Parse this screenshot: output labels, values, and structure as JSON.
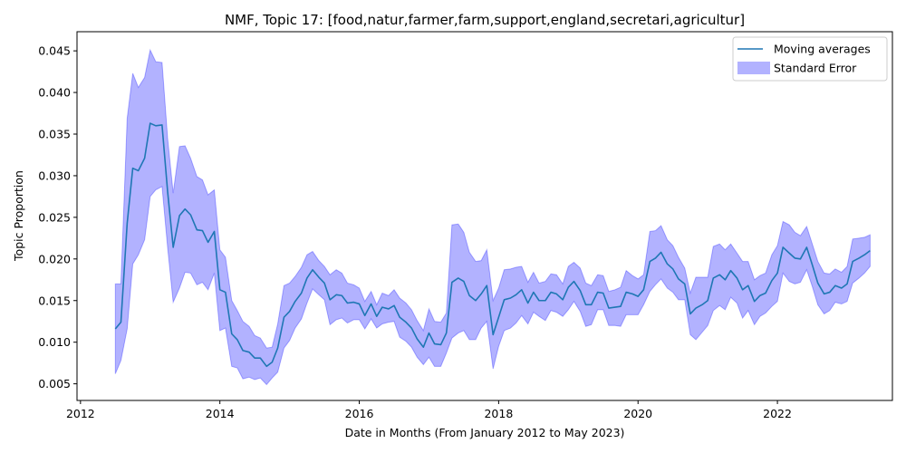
{
  "chart_data": {
    "type": "line",
    "title": "NMF, Topic 17: [food,natur,farmer,farm,support,england,secretari,agricultur]",
    "xlabel": "Date in Months (From January 2012 to May 2023)",
    "ylabel": "Topic Proportion",
    "xlim": [
      2011.95,
      2023.65
    ],
    "ylim": [
      0.003,
      0.0473
    ],
    "xticks": [
      2012,
      2014,
      2016,
      2018,
      2020,
      2022
    ],
    "yticks": [
      0.005,
      0.01,
      0.015,
      0.02,
      0.025,
      0.03,
      0.035,
      0.04,
      0.045
    ],
    "ytick_labels": [
      "0.005",
      "0.010",
      "0.015",
      "0.020",
      "0.025",
      "0.030",
      "0.035",
      "0.040",
      "0.045"
    ],
    "grid": false,
    "legend_position": "upper right",
    "colors": {
      "line": "#1f77b4",
      "band": "#0000ff",
      "band_alpha": 0.3
    },
    "series": [
      {
        "name": "Moving averages",
        "kind": "line",
        "x": [
          2012.5,
          2012.58,
          2012.67,
          2012.75,
          2012.83,
          2012.92,
          2013.0,
          2013.08,
          2013.17,
          2013.25,
          2013.33,
          2013.42,
          2013.5,
          2013.58,
          2013.67,
          2013.75,
          2013.83,
          2013.92,
          2014.0,
          2014.08,
          2014.17,
          2014.25,
          2014.33,
          2014.42,
          2014.5,
          2014.58,
          2014.67,
          2014.75,
          2014.83,
          2014.92,
          2015.0,
          2015.08,
          2015.17,
          2015.25,
          2015.33,
          2015.42,
          2015.5,
          2015.58,
          2015.67,
          2015.75,
          2015.83,
          2015.92,
          2016.0,
          2016.08,
          2016.17,
          2016.25,
          2016.33,
          2016.42,
          2016.5,
          2016.58,
          2016.67,
          2016.75,
          2016.83,
          2016.92,
          2017.0,
          2017.08,
          2017.17,
          2017.25,
          2017.33,
          2017.42,
          2017.5,
          2017.58,
          2017.67,
          2017.75,
          2017.83,
          2017.92,
          2018.0,
          2018.08,
          2018.17,
          2018.25,
          2018.33,
          2018.42,
          2018.5,
          2018.58,
          2018.67,
          2018.75,
          2018.83,
          2018.92,
          2019.0,
          2019.08,
          2019.17,
          2019.25,
          2019.33,
          2019.42,
          2019.5,
          2019.58,
          2019.67,
          2019.75,
          2019.83,
          2019.92,
          2020.0,
          2020.08,
          2020.17,
          2020.25,
          2020.33,
          2020.42,
          2020.5,
          2020.58,
          2020.67,
          2020.75,
          2020.83,
          2020.92,
          2021.0,
          2021.08,
          2021.17,
          2021.25,
          2021.33,
          2021.42,
          2021.5,
          2021.58,
          2021.67,
          2021.75,
          2021.83,
          2021.92,
          2022.0,
          2022.08,
          2022.17,
          2022.25,
          2022.33,
          2022.42,
          2022.5,
          2022.58,
          2022.67,
          2022.75,
          2022.83,
          2022.92,
          2023.0,
          2023.08,
          2023.17,
          2023.25,
          2023.33
        ],
        "y": [
          0.0116,
          0.0124,
          0.0243,
          0.0309,
          0.0306,
          0.0321,
          0.0363,
          0.036,
          0.0361,
          0.0281,
          0.0214,
          0.0252,
          0.026,
          0.0253,
          0.0235,
          0.0234,
          0.022,
          0.0233,
          0.0163,
          0.016,
          0.011,
          0.0103,
          0.009,
          0.0088,
          0.0081,
          0.0081,
          0.0071,
          0.0076,
          0.0093,
          0.013,
          0.0137,
          0.0149,
          0.0159,
          0.0177,
          0.0187,
          0.0178,
          0.0171,
          0.0151,
          0.0157,
          0.0156,
          0.0147,
          0.0148,
          0.0146,
          0.0132,
          0.0146,
          0.0131,
          0.0142,
          0.014,
          0.0144,
          0.013,
          0.0124,
          0.0117,
          0.0104,
          0.0094,
          0.0111,
          0.0098,
          0.0097,
          0.0111,
          0.0172,
          0.0177,
          0.0173,
          0.0156,
          0.015,
          0.0158,
          0.0168,
          0.0109,
          0.013,
          0.0151,
          0.0153,
          0.0157,
          0.0163,
          0.0147,
          0.016,
          0.015,
          0.015,
          0.016,
          0.0158,
          0.0151,
          0.0166,
          0.0173,
          0.0162,
          0.0145,
          0.0145,
          0.016,
          0.0159,
          0.0141,
          0.0142,
          0.0143,
          0.016,
          0.0158,
          0.0155,
          0.0163,
          0.0197,
          0.0201,
          0.0208,
          0.0194,
          0.0188,
          0.0176,
          0.017,
          0.0134,
          0.0141,
          0.0145,
          0.015,
          0.0177,
          0.0181,
          0.0175,
          0.0186,
          0.0177,
          0.0163,
          0.0168,
          0.0149,
          0.0156,
          0.0159,
          0.0174,
          0.0183,
          0.0214,
          0.0207,
          0.0201,
          0.02,
          0.0214,
          0.0193,
          0.0171,
          0.0158,
          0.016,
          0.0168,
          0.0165,
          0.017,
          0.0197,
          0.0201,
          0.0205,
          0.021
        ]
      },
      {
        "name": "Standard Error",
        "kind": "band",
        "x": [
          2012.5,
          2012.58,
          2012.67,
          2012.75,
          2012.83,
          2012.92,
          2013.0,
          2013.08,
          2013.17,
          2013.25,
          2013.33,
          2013.42,
          2013.5,
          2013.58,
          2013.67,
          2013.75,
          2013.83,
          2013.92,
          2014.0,
          2014.08,
          2014.17,
          2014.25,
          2014.33,
          2014.42,
          2014.5,
          2014.58,
          2014.67,
          2014.75,
          2014.83,
          2014.92,
          2015.0,
          2015.08,
          2015.17,
          2015.25,
          2015.33,
          2015.42,
          2015.5,
          2015.58,
          2015.67,
          2015.75,
          2015.83,
          2015.92,
          2016.0,
          2016.08,
          2016.17,
          2016.25,
          2016.33,
          2016.42,
          2016.5,
          2016.58,
          2016.67,
          2016.75,
          2016.83,
          2016.92,
          2017.0,
          2017.08,
          2017.17,
          2017.25,
          2017.33,
          2017.42,
          2017.5,
          2017.58,
          2017.67,
          2017.75,
          2017.83,
          2017.92,
          2018.0,
          2018.08,
          2018.17,
          2018.25,
          2018.33,
          2018.42,
          2018.5,
          2018.58,
          2018.67,
          2018.75,
          2018.83,
          2018.92,
          2019.0,
          2019.08,
          2019.17,
          2019.25,
          2019.33,
          2019.42,
          2019.5,
          2019.58,
          2019.67,
          2019.75,
          2019.83,
          2019.92,
          2020.0,
          2020.08,
          2020.17,
          2020.25,
          2020.33,
          2020.42,
          2020.5,
          2020.58,
          2020.67,
          2020.75,
          2020.83,
          2020.92,
          2021.0,
          2021.08,
          2021.17,
          2021.25,
          2021.33,
          2021.42,
          2021.5,
          2021.58,
          2021.67,
          2021.75,
          2021.83,
          2021.92,
          2022.0,
          2022.08,
          2022.17,
          2022.25,
          2022.33,
          2022.42,
          2022.5,
          2022.58,
          2022.67,
          2022.75,
          2022.83,
          2022.92,
          2023.0,
          2023.08,
          2023.17,
          2023.25,
          2023.33
        ],
        "lower": [
          0.0062,
          0.0078,
          0.0116,
          0.0194,
          0.0205,
          0.0223,
          0.0275,
          0.0283,
          0.0287,
          0.0214,
          0.0148,
          0.0165,
          0.0184,
          0.0183,
          0.0169,
          0.0172,
          0.0163,
          0.0183,
          0.0114,
          0.0117,
          0.0071,
          0.0069,
          0.0056,
          0.0058,
          0.0055,
          0.0057,
          0.0049,
          0.0057,
          0.0064,
          0.0093,
          0.0102,
          0.0117,
          0.0128,
          0.0147,
          0.0164,
          0.0157,
          0.0151,
          0.0121,
          0.0127,
          0.0129,
          0.0123,
          0.0127,
          0.0127,
          0.0116,
          0.0128,
          0.0117,
          0.0122,
          0.0124,
          0.0125,
          0.0106,
          0.0101,
          0.0094,
          0.0082,
          0.0073,
          0.0082,
          0.0071,
          0.0071,
          0.0087,
          0.0105,
          0.0111,
          0.0114,
          0.0103,
          0.0103,
          0.0117,
          0.0125,
          0.0068,
          0.0095,
          0.0114,
          0.0117,
          0.0123,
          0.0132,
          0.0122,
          0.0136,
          0.0131,
          0.0126,
          0.0138,
          0.0136,
          0.0131,
          0.0139,
          0.0149,
          0.0137,
          0.0119,
          0.0121,
          0.0139,
          0.0139,
          0.012,
          0.012,
          0.0119,
          0.0133,
          0.0133,
          0.0133,
          0.0145,
          0.0161,
          0.0169,
          0.0176,
          0.0165,
          0.016,
          0.0151,
          0.0151,
          0.0109,
          0.0103,
          0.0112,
          0.012,
          0.0138,
          0.0144,
          0.0139,
          0.0154,
          0.0147,
          0.0129,
          0.0138,
          0.0121,
          0.0131,
          0.0135,
          0.0143,
          0.0149,
          0.0183,
          0.0173,
          0.017,
          0.0172,
          0.0187,
          0.0167,
          0.0145,
          0.0134,
          0.0138,
          0.0148,
          0.0146,
          0.0149,
          0.0171,
          0.0177,
          0.0183,
          0.0191
        ],
        "upper": [
          0.017,
          0.017,
          0.0369,
          0.0423,
          0.0406,
          0.0418,
          0.0451,
          0.0437,
          0.0436,
          0.0345,
          0.0279,
          0.0335,
          0.0336,
          0.0321,
          0.0299,
          0.0295,
          0.0277,
          0.0283,
          0.0211,
          0.0202,
          0.015,
          0.0138,
          0.0125,
          0.0119,
          0.0108,
          0.0105,
          0.0093,
          0.0094,
          0.0122,
          0.0168,
          0.0171,
          0.0179,
          0.019,
          0.0205,
          0.0209,
          0.0198,
          0.0191,
          0.0181,
          0.0187,
          0.0183,
          0.0171,
          0.0169,
          0.0165,
          0.0149,
          0.0161,
          0.0145,
          0.0159,
          0.0156,
          0.0163,
          0.0153,
          0.0147,
          0.0139,
          0.0126,
          0.0114,
          0.014,
          0.0125,
          0.0124,
          0.0135,
          0.0241,
          0.0242,
          0.0232,
          0.0208,
          0.0197,
          0.0198,
          0.0211,
          0.015,
          0.0165,
          0.0187,
          0.0188,
          0.019,
          0.0191,
          0.0172,
          0.0184,
          0.0171,
          0.0173,
          0.0182,
          0.0181,
          0.017,
          0.0191,
          0.0196,
          0.0189,
          0.0171,
          0.0168,
          0.0181,
          0.018,
          0.0161,
          0.0163,
          0.0166,
          0.0186,
          0.018,
          0.0176,
          0.0181,
          0.0233,
          0.0234,
          0.024,
          0.0223,
          0.0216,
          0.0202,
          0.0189,
          0.0159,
          0.0178,
          0.0178,
          0.0178,
          0.0215,
          0.0218,
          0.0211,
          0.0218,
          0.0207,
          0.0197,
          0.0197,
          0.0175,
          0.018,
          0.0183,
          0.0205,
          0.0216,
          0.0245,
          0.0241,
          0.0232,
          0.0228,
          0.0239,
          0.0218,
          0.0197,
          0.0183,
          0.0182,
          0.0188,
          0.0184,
          0.0191,
          0.0224,
          0.0225,
          0.0226,
          0.0229
        ]
      }
    ]
  }
}
